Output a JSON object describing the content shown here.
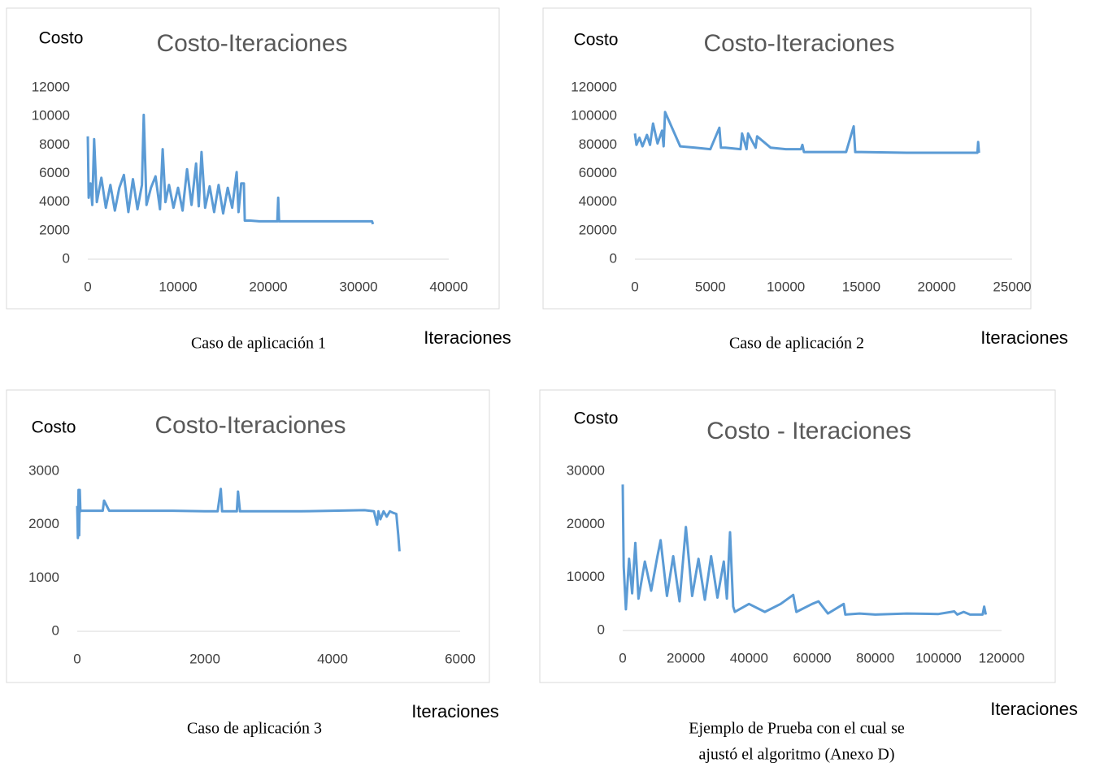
{
  "chart_data": [
    {
      "type": "line",
      "title": "Costo-Iteraciones",
      "y_label": "Costo",
      "x_label": "Iteraciones",
      "caption": [
        "Caso de aplicación 1"
      ],
      "xlim": [
        0,
        40000
      ],
      "xticks": [
        0,
        10000,
        20000,
        30000,
        40000
      ],
      "ylim": [
        0,
        12000
      ],
      "yticks": [
        0,
        2000,
        4000,
        6000,
        8000,
        10000,
        12000
      ],
      "grid": false,
      "series": [
        {
          "color": "#5b9bd5",
          "x": [
            0,
            100,
            300,
            500,
            700,
            1000,
            1500,
            2000,
            2500,
            3000,
            3500,
            4000,
            4500,
            5000,
            5500,
            6000,
            6200,
            6500,
            7000,
            7500,
            8000,
            8300,
            8600,
            9000,
            9500,
            10000,
            10500,
            11000,
            11500,
            12000,
            12300,
            12600,
            13000,
            13500,
            14000,
            14500,
            15000,
            15500,
            16000,
            16500,
            16700,
            17000,
            17300,
            17400,
            18000,
            19000,
            20000,
            21000,
            21100,
            21200,
            22000,
            25000,
            28000,
            31500,
            31600
          ],
          "values": [
            8600,
            4300,
            5300,
            3800,
            8400,
            4000,
            5700,
            3600,
            5200,
            3400,
            5000,
            5900,
            3300,
            5600,
            3500,
            5200,
            10100,
            3800,
            5000,
            5800,
            3500,
            7700,
            4000,
            5200,
            3600,
            5000,
            3400,
            6300,
            3800,
            6700,
            3700,
            7500,
            3600,
            5100,
            3300,
            5200,
            3200,
            5000,
            3600,
            6100,
            3300,
            5300,
            5300,
            2700,
            2700,
            2650,
            2650,
            2650,
            4300,
            2650,
            2650,
            2650,
            2650,
            2650,
            2450
          ]
        }
      ]
    },
    {
      "type": "line",
      "title": "Costo-Iteraciones",
      "y_label": "Costo",
      "x_label": "Iteraciones",
      "caption": [
        "Caso de aplicación 2"
      ],
      "xlim": [
        0,
        25000
      ],
      "xticks": [
        0,
        5000,
        10000,
        15000,
        20000,
        25000
      ],
      "ylim": [
        0,
        120000
      ],
      "yticks": [
        0,
        20000,
        40000,
        60000,
        80000,
        100000,
        120000
      ],
      "grid": false,
      "series": [
        {
          "color": "#5b9bd5",
          "x": [
            0,
            100,
            300,
            500,
            800,
            1000,
            1200,
            1500,
            1800,
            1900,
            2000,
            3000,
            4000,
            5000,
            5600,
            5700,
            6000,
            7000,
            7100,
            7400,
            7500,
            8000,
            8100,
            9000,
            10000,
            11000,
            11100,
            11200,
            12000,
            14000,
            14500,
            14600,
            14700,
            15000,
            18000,
            20000,
            22000,
            22700,
            22750,
            22800
          ],
          "values": [
            88000,
            80000,
            85000,
            79000,
            87000,
            80000,
            95000,
            81000,
            90000,
            79000,
            103000,
            79000,
            78000,
            77000,
            92000,
            78000,
            78000,
            77000,
            88000,
            77000,
            88000,
            78000,
            86000,
            78000,
            77000,
            77000,
            80000,
            75000,
            75000,
            75000,
            93000,
            75000,
            75000,
            75000,
            74500,
            74500,
            74500,
            74500,
            82000,
            74500
          ]
        }
      ]
    },
    {
      "type": "line",
      "title": "Costo-Iteraciones",
      "y_label": "Costo",
      "x_label": "Iteraciones",
      "caption": [
        "Caso de aplicación 3"
      ],
      "xlim": [
        0,
        6000
      ],
      "xticks": [
        0,
        2000,
        4000,
        6000
      ],
      "ylim": [
        0,
        3000
      ],
      "yticks": [
        0,
        1000,
        2000,
        3000
      ],
      "grid": false,
      "series": [
        {
          "color": "#5b9bd5",
          "x": [
            0,
            10,
            20,
            30,
            40,
            50,
            60,
            100,
            400,
            420,
            500,
            1000,
            1500,
            2000,
            2200,
            2250,
            2270,
            2300,
            2500,
            2520,
            2550,
            3000,
            3500,
            4000,
            4500,
            4650,
            4700,
            4720,
            4750,
            4800,
            4850,
            4900,
            4950,
            5000,
            5030,
            5050
          ],
          "values": [
            2350,
            1750,
            2650,
            1800,
            2650,
            2250,
            2260,
            2260,
            2260,
            2450,
            2260,
            2260,
            2260,
            2250,
            2250,
            2670,
            2250,
            2250,
            2250,
            2620,
            2250,
            2250,
            2250,
            2260,
            2270,
            2250,
            2000,
            2250,
            2100,
            2250,
            2150,
            2250,
            2220,
            2200,
            1800,
            1500
          ]
        }
      ]
    },
    {
      "type": "line",
      "title": "Costo - Iteraciones",
      "y_label": "Costo",
      "x_label": "Iteraciones",
      "caption": [
        "Ejemplo de Prueba con el cual se",
        "ajustó el algoritmo (Anexo D)"
      ],
      "xlim": [
        0,
        120000
      ],
      "xticks": [
        0,
        20000,
        40000,
        60000,
        80000,
        100000,
        120000
      ],
      "ylim": [
        0,
        30000
      ],
      "yticks": [
        0,
        10000,
        20000,
        30000
      ],
      "grid": false,
      "series": [
        {
          "color": "#5b9bd5",
          "x": [
            0,
            300,
            1000,
            2000,
            3000,
            4000,
            5000,
            7000,
            9000,
            11000,
            12000,
            14000,
            16000,
            18000,
            20000,
            22000,
            24000,
            26000,
            28000,
            30000,
            32000,
            33000,
            34000,
            35000,
            35500,
            40000,
            45000,
            50000,
            54000,
            55000,
            60000,
            62000,
            65000,
            70000,
            70500,
            75000,
            80000,
            90000,
            100000,
            105000,
            106000,
            108000,
            110000,
            114000,
            114500,
            115000
          ],
          "values": [
            27500,
            12000,
            4000,
            13500,
            7000,
            16500,
            6000,
            13000,
            7500,
            14000,
            17000,
            6500,
            14000,
            5500,
            19500,
            6500,
            13500,
            5800,
            14000,
            6200,
            13000,
            6000,
            18500,
            4500,
            3500,
            5000,
            3500,
            5000,
            6700,
            3500,
            5000,
            5500,
            3200,
            5000,
            3000,
            3200,
            3000,
            3200,
            3100,
            3600,
            3000,
            3500,
            3000,
            3000,
            4500,
            3000
          ]
        }
      ]
    }
  ]
}
